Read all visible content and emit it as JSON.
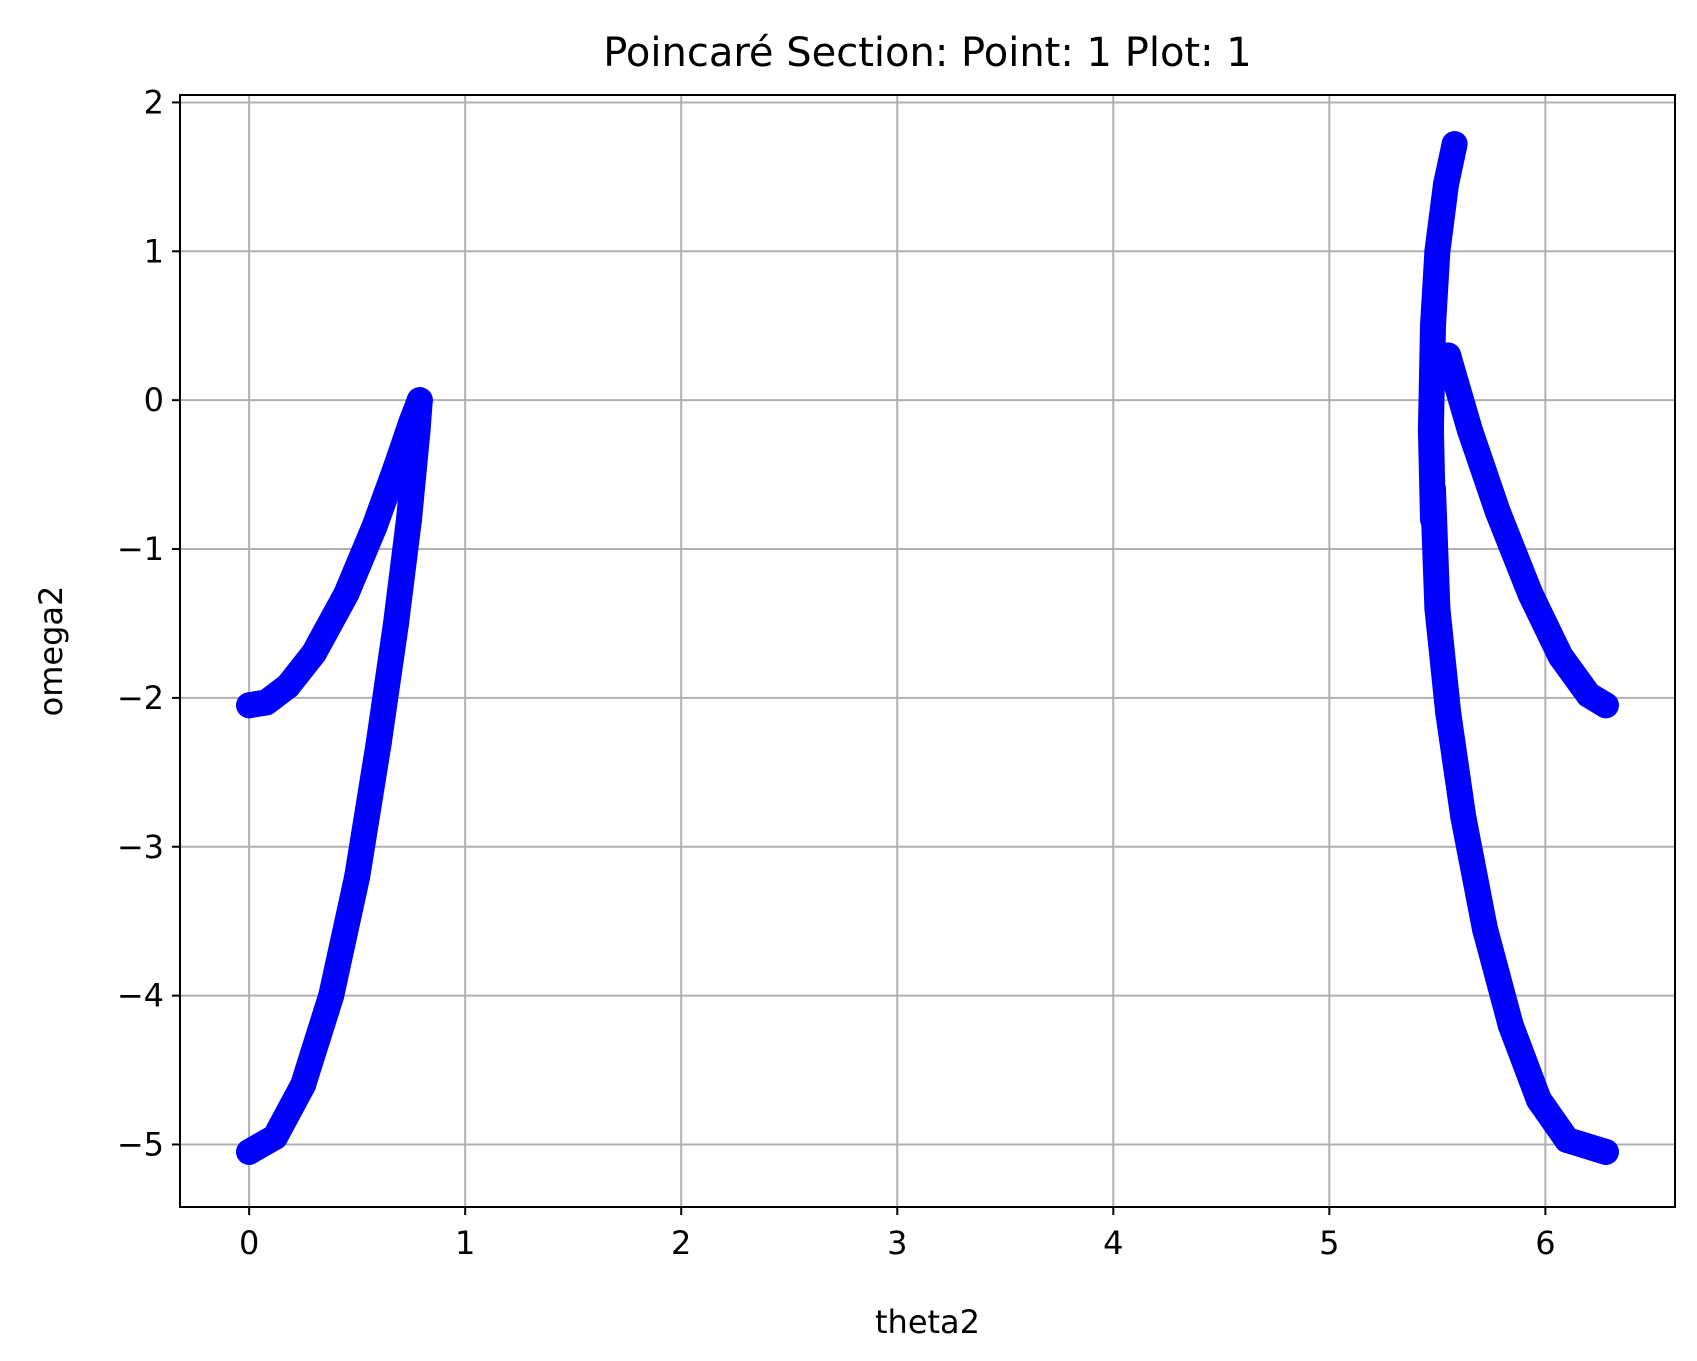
{
  "chart_data": {
    "type": "scatter",
    "title": "Poincaré Section: Point: 1 Plot: 1",
    "xlabel": "theta2",
    "ylabel": "omega2",
    "xlim": [
      -0.32,
      6.6
    ],
    "ylim": [
      -5.42,
      2.05
    ],
    "xticks": [
      0,
      1,
      2,
      3,
      4,
      5,
      6
    ],
    "yticks": [
      2,
      1,
      0,
      -1,
      -2,
      -3,
      -4,
      -5
    ],
    "xtick_labels": [
      "0",
      "1",
      "2",
      "3",
      "4",
      "5",
      "6"
    ],
    "ytick_labels": [
      "2",
      "1",
      "0",
      "−1",
      "−2",
      "−3",
      "−4",
      "−5"
    ],
    "grid": true,
    "series_color": "#0000ff",
    "series": [
      {
        "segment": "left-upper-band",
        "points": [
          [
            0.0,
            -2.05
          ],
          [
            0.08,
            -2.03
          ],
          [
            0.18,
            -1.92
          ],
          [
            0.3,
            -1.7
          ],
          [
            0.45,
            -1.3
          ],
          [
            0.58,
            -0.85
          ],
          [
            0.68,
            -0.45
          ],
          [
            0.75,
            -0.15
          ],
          [
            0.79,
            0.0
          ]
        ]
      },
      {
        "segment": "left-lower-branch",
        "points": [
          [
            0.0,
            -5.05
          ],
          [
            0.12,
            -4.95
          ],
          [
            0.25,
            -4.6
          ],
          [
            0.38,
            -4.0
          ],
          [
            0.5,
            -3.2
          ],
          [
            0.6,
            -2.3
          ],
          [
            0.68,
            -1.5
          ],
          [
            0.74,
            -0.8
          ],
          [
            0.78,
            -0.2
          ],
          [
            0.79,
            0.0
          ]
        ]
      },
      {
        "segment": "right-upper-stem",
        "points": [
          [
            5.48,
            -0.8
          ],
          [
            5.47,
            -0.2
          ],
          [
            5.48,
            0.5
          ],
          [
            5.5,
            1.0
          ],
          [
            5.54,
            1.45
          ],
          [
            5.58,
            1.72
          ]
        ]
      },
      {
        "segment": "right-upper-band",
        "points": [
          [
            5.55,
            0.3
          ],
          [
            5.65,
            -0.2
          ],
          [
            5.78,
            -0.75
          ],
          [
            5.93,
            -1.3
          ],
          [
            6.07,
            -1.72
          ],
          [
            6.2,
            -1.98
          ],
          [
            6.28,
            -2.05
          ]
        ]
      },
      {
        "segment": "right-lower-branch",
        "points": [
          [
            5.48,
            -0.6
          ],
          [
            5.5,
            -1.4
          ],
          [
            5.55,
            -2.1
          ],
          [
            5.62,
            -2.8
          ],
          [
            5.72,
            -3.55
          ],
          [
            5.84,
            -4.2
          ],
          [
            5.97,
            -4.7
          ],
          [
            6.1,
            -4.97
          ],
          [
            6.28,
            -5.05
          ]
        ]
      }
    ]
  }
}
